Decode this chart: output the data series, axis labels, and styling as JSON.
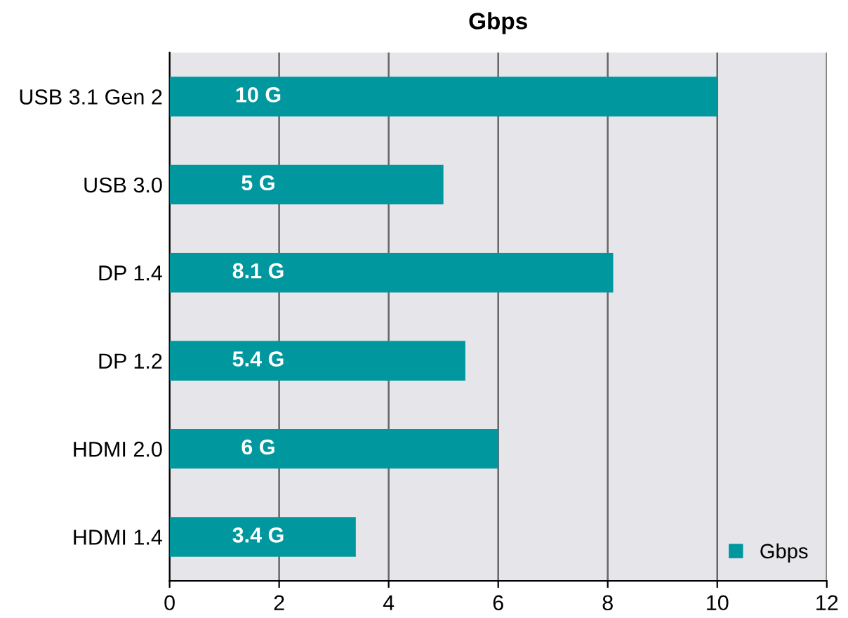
{
  "chart_data": {
    "type": "bar",
    "orientation": "horizontal",
    "title": "Gbps",
    "categories": [
      "USB 3.1 Gen 2",
      "USB 3.0",
      "DP 1.4",
      "DP 1.2",
      "HDMI 2.0",
      "HDMI 1.4"
    ],
    "series": [
      {
        "name": "Gbps",
        "color": "#00979f",
        "values": [
          10,
          5,
          8.1,
          5.4,
          6,
          3.4
        ]
      }
    ],
    "value_labels": [
      "10 G",
      "5 G",
      "8.1 G",
      "5.4 G",
      "6 G",
      "3.4 G"
    ],
    "xlim": [
      0,
      12
    ],
    "xticks": [
      0,
      2,
      4,
      6,
      8,
      10,
      12
    ],
    "grid": "x",
    "legend": "bottom right"
  }
}
